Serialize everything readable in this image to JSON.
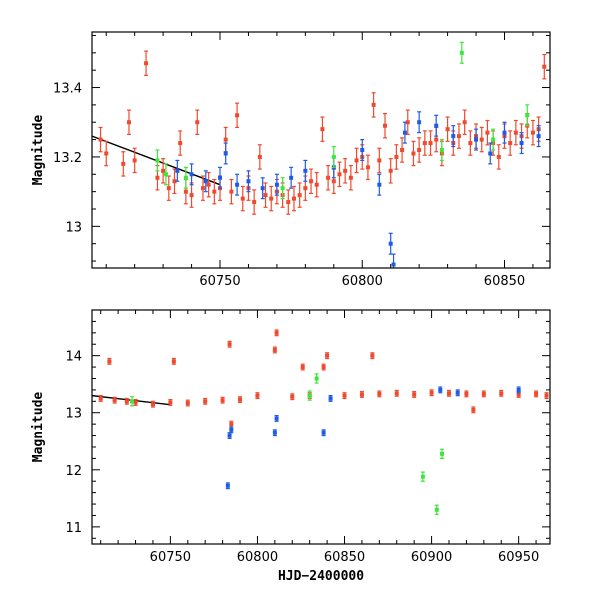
{
  "colors": {
    "red": "#f04a2e",
    "blue": "#1f5ce6",
    "green": "#3ee63e",
    "trend": "#000000",
    "axis": "#000000"
  },
  "chart_data": [
    {
      "type": "scatter",
      "title": "",
      "xlabel": "",
      "ylabel": "Magnitude",
      "xlim": [
        60705,
        60866
      ],
      "ylim": [
        13.56,
        12.88
      ],
      "y_inverted": true,
      "xticks": [
        60750,
        60800,
        60850
      ],
      "yticks": [
        13.0,
        13.2,
        13.4
      ],
      "ytick_labels": [
        "13",
        "13.2",
        "13.4"
      ],
      "trend_line": {
        "x": [
          60705,
          60750
        ],
        "y": [
          13.26,
          13.12
        ]
      },
      "series": [
        {
          "name": "red",
          "color_key": "red",
          "error": 0.035,
          "x": [
            60708,
            60710,
            60716,
            60718,
            60720,
            60724,
            60728,
            60730,
            60732,
            60734,
            60736,
            60738,
            60740,
            60742,
            60744,
            60746,
            60748,
            60750,
            60752,
            60754,
            60756,
            60758,
            60760,
            60762,
            60764,
            60766,
            60768,
            60770,
            60772,
            60774,
            60776,
            60778,
            60780,
            60782,
            60784,
            60786,
            60788,
            60790,
            60792,
            60794,
            60796,
            60798,
            60800,
            60802,
            60804,
            60806,
            60808,
            60810,
            60812,
            60814,
            60816,
            60818,
            60820,
            60822,
            60824,
            60826,
            60828,
            60830,
            60832,
            60834,
            60836,
            60838,
            60840,
            60842,
            60844,
            60846,
            60848,
            60850,
            60852,
            60854,
            60856,
            60858,
            60860,
            60862,
            60864
          ],
          "y": [
            13.25,
            13.21,
            13.18,
            13.3,
            13.19,
            13.47,
            13.14,
            13.16,
            13.11,
            13.13,
            13.24,
            13.1,
            13.09,
            13.3,
            13.11,
            13.12,
            13.1,
            13.11,
            13.25,
            13.1,
            13.32,
            13.08,
            13.11,
            13.07,
            13.2,
            13.09,
            13.08,
            13.1,
            13.09,
            13.07,
            13.08,
            13.09,
            13.11,
            13.13,
            13.12,
            13.28,
            13.14,
            13.13,
            13.15,
            13.16,
            13.14,
            13.19,
            13.2,
            13.17,
            13.35,
            13.19,
            13.29,
            13.16,
            13.2,
            13.22,
            13.3,
            13.21,
            13.22,
            13.24,
            13.24,
            13.25,
            13.21,
            13.28,
            13.24,
            13.26,
            13.3,
            13.24,
            13.26,
            13.25,
            13.27,
            13.24,
            13.2,
            13.26,
            13.24,
            13.27,
            13.26,
            13.29,
            13.27,
            13.28,
            13.46
          ]
        },
        {
          "name": "blue",
          "color_key": "blue",
          "error": 0.03,
          "x": [
            60735,
            60740,
            60745,
            60750,
            60752,
            60756,
            60760,
            60765,
            60770,
            60775,
            60780,
            60790,
            60800,
            60806,
            60810,
            60811,
            60815,
            60820,
            60826,
            60832,
            60840,
            60845,
            60850,
            60856,
            60862
          ],
          "y": [
            13.16,
            13.15,
            13.13,
            13.14,
            13.21,
            13.12,
            13.13,
            13.11,
            13.12,
            13.14,
            13.16,
            13.17,
            13.22,
            13.12,
            12.95,
            12.89,
            13.27,
            13.3,
            13.29,
            13.26,
            13.25,
            13.21,
            13.27,
            13.24,
            13.26
          ]
        },
        {
          "name": "green",
          "color_key": "green",
          "error": 0.03,
          "x": [
            60728,
            60731,
            60738,
            60772,
            60790,
            60828,
            60835,
            60846,
            60858
          ],
          "y": [
            13.19,
            13.15,
            13.14,
            13.11,
            13.2,
            13.22,
            13.5,
            13.25,
            13.32
          ]
        }
      ]
    },
    {
      "type": "scatter",
      "title": "",
      "xlabel": "HJD−2400000",
      "ylabel": "Magnitude",
      "xlim": [
        60705,
        60968
      ],
      "ylim": [
        14.8,
        10.7
      ],
      "y_inverted": true,
      "xticks": [
        60750,
        60800,
        60850,
        60900,
        60950
      ],
      "yticks": [
        11,
        12,
        13,
        14
      ],
      "ytick_labels": [
        "11",
        "12",
        "13",
        "14"
      ],
      "trend_line": {
        "x": [
          60705,
          60750
        ],
        "y": [
          13.3,
          13.14
        ]
      },
      "series": [
        {
          "name": "red",
          "color_key": "red",
          "error": 0.05,
          "x": [
            60710,
            60715,
            60718,
            60725,
            60730,
            60740,
            60750,
            60752,
            60760,
            60770,
            60780,
            60784,
            60785,
            60790,
            60800,
            60810,
            60811,
            60820,
            60826,
            60830,
            60838,
            60840,
            60850,
            60860,
            60866,
            60870,
            60880,
            60890,
            60900,
            60910,
            60920,
            60924,
            60930,
            60940,
            60950,
            60960,
            60966
          ],
          "y": [
            13.25,
            13.9,
            13.22,
            13.2,
            13.18,
            13.15,
            13.18,
            13.9,
            13.17,
            13.2,
            13.22,
            14.2,
            12.8,
            13.23,
            13.3,
            14.1,
            14.4,
            13.28,
            13.8,
            13.3,
            13.8,
            14.0,
            13.3,
            13.32,
            14.0,
            13.33,
            13.34,
            13.32,
            13.35,
            13.34,
            13.33,
            13.05,
            13.33,
            13.34,
            13.32,
            13.33,
            13.3
          ]
        },
        {
          "name": "blue",
          "color_key": "blue",
          "error": 0.05,
          "x": [
            60783,
            60784,
            60785,
            60810,
            60811,
            60838,
            60842,
            60905,
            60915,
            60950
          ],
          "y": [
            11.72,
            12.6,
            12.7,
            12.65,
            12.9,
            12.65,
            13.25,
            13.4,
            13.35,
            13.4
          ]
        },
        {
          "name": "green",
          "color_key": "green",
          "error": 0.08,
          "x": [
            60728,
            60830,
            60834,
            60895,
            60903,
            60906
          ],
          "y": [
            13.2,
            13.3,
            13.6,
            11.88,
            11.3,
            12.28
          ]
        }
      ]
    }
  ]
}
